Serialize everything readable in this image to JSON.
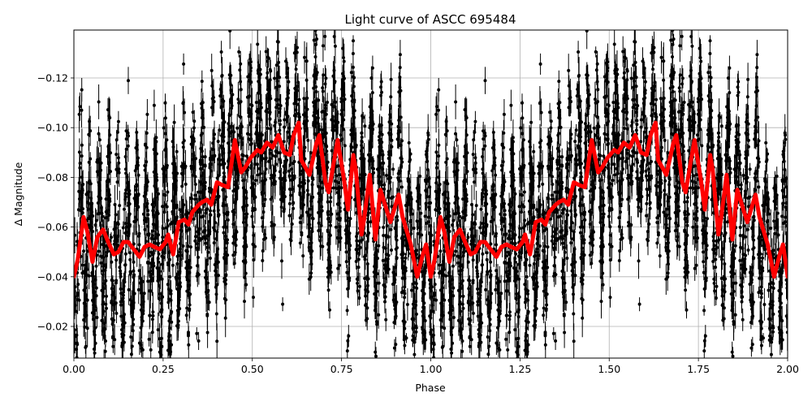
{
  "chart_data": {
    "type": "scatter",
    "title": "Light curve of ASCC 695484",
    "xlabel": "Phase",
    "ylabel": "Δ Magnitude",
    "xlim": [
      0.0,
      2.0
    ],
    "ylim": [
      -0.009,
      -0.138
    ],
    "y_inverted": true,
    "grid": true,
    "legend": null,
    "x_ticks": [
      0.0,
      0.25,
      0.5,
      0.75,
      1.0,
      1.25,
      1.5,
      1.75,
      2.0
    ],
    "x_tick_labels": [
      "0.00",
      "0.25",
      "0.50",
      "0.75",
      "1.00",
      "1.25",
      "1.50",
      "1.75",
      "2.00"
    ],
    "y_ticks": [
      -0.12,
      -0.1,
      -0.08,
      -0.06,
      -0.04,
      -0.02
    ],
    "y_tick_labels": [
      "−0.12",
      "−0.10",
      "−0.08",
      "−0.06",
      "−0.04",
      "−0.02"
    ],
    "series": [
      {
        "name": "observations",
        "style": "black points with vertical error bars",
        "color": "#000000",
        "description": "Dense phase-folded photometry, values spread roughly between -0.01 and -0.14 with rapid oscillation; pattern repeats from phase 1 to 2"
      },
      {
        "name": "model",
        "style": "thick red line",
        "color": "#ff0000",
        "x": [
          0.0,
          0.011,
          0.027,
          0.038,
          0.052,
          0.066,
          0.082,
          0.096,
          0.112,
          0.125,
          0.139,
          0.152,
          0.168,
          0.184,
          0.198,
          0.212,
          0.226,
          0.241,
          0.257,
          0.264,
          0.278,
          0.294,
          0.31,
          0.321,
          0.332,
          0.35,
          0.359,
          0.373,
          0.385,
          0.401,
          0.414,
          0.432,
          0.451,
          0.469,
          0.48,
          0.496,
          0.514,
          0.525,
          0.541,
          0.557,
          0.573,
          0.589,
          0.605,
          0.616,
          0.63,
          0.637,
          0.66,
          0.68,
          0.688,
          0.705,
          0.714,
          0.739,
          0.757,
          0.768,
          0.783,
          0.79,
          0.806,
          0.813,
          0.829,
          0.845,
          0.859,
          0.887,
          0.91,
          0.921,
          0.944,
          0.962,
          0.978,
          0.987,
          1.0
        ],
        "values": [
          -0.04,
          -0.047,
          -0.064,
          -0.058,
          -0.046,
          -0.056,
          -0.059,
          -0.054,
          -0.049,
          -0.05,
          -0.054,
          -0.054,
          -0.051,
          -0.048,
          -0.052,
          -0.053,
          -0.052,
          -0.051,
          -0.054,
          -0.057,
          -0.049,
          -0.062,
          -0.063,
          -0.061,
          -0.066,
          -0.069,
          -0.07,
          -0.071,
          -0.069,
          -0.078,
          -0.077,
          -0.076,
          -0.095,
          -0.082,
          -0.084,
          -0.088,
          -0.091,
          -0.09,
          -0.094,
          -0.092,
          -0.097,
          -0.09,
          -0.089,
          -0.097,
          -0.102,
          -0.087,
          -0.081,
          -0.094,
          -0.097,
          -0.078,
          -0.074,
          -0.095,
          -0.079,
          -0.067,
          -0.089,
          -0.083,
          -0.057,
          -0.063,
          -0.081,
          -0.055,
          -0.075,
          -0.062,
          -0.073,
          -0.064,
          -0.053,
          -0.04,
          -0.049,
          -0.053,
          -0.04
        ],
        "note": "Curve repeats identically from phase 1.0 to 2.0"
      }
    ]
  }
}
